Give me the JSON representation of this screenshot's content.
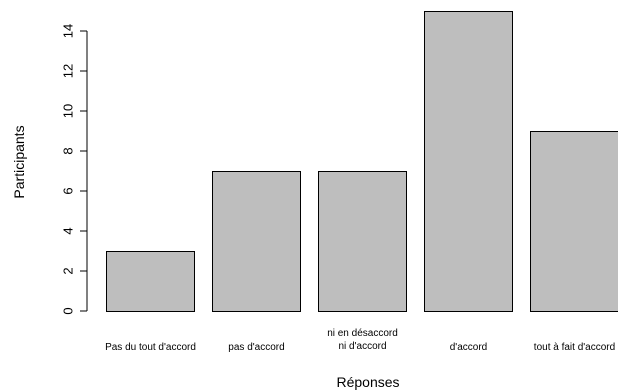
{
  "chart_data": {
    "type": "bar",
    "categories": [
      [
        "Pas du tout d'accord"
      ],
      [
        "pas d'accord"
      ],
      [
        "ni en désaccord",
        "ni d'accord"
      ],
      [
        "d'accord"
      ],
      [
        "tout à fait d'accord"
      ]
    ],
    "values": [
      3,
      7,
      7,
      15,
      9
    ],
    "xlabel": "Réponses",
    "ylabel": "Participants",
    "yticks": [
      0,
      2,
      4,
      6,
      8,
      10,
      12,
      14
    ],
    "ylim": [
      0,
      15
    ],
    "grid": false,
    "bar_color": "#bebebe",
    "edge_color": "#000000"
  }
}
